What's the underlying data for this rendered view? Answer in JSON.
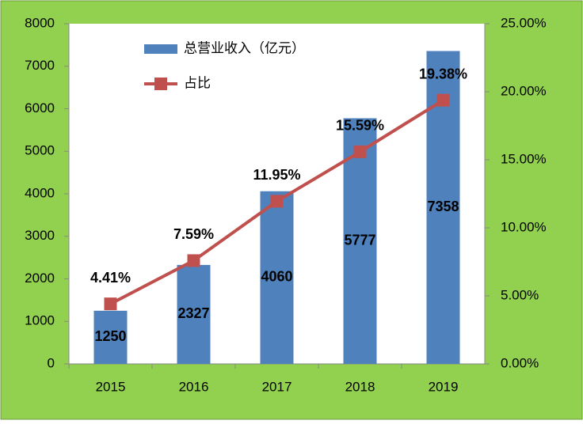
{
  "chart_data": {
    "type": "bar",
    "categories": [
      "2015",
      "2016",
      "2017",
      "2018",
      "2019"
    ],
    "series": [
      {
        "name": "总营业收入（亿元）",
        "type": "bar",
        "color": "#4f81bd",
        "values": [
          1250,
          2327,
          4060,
          5777,
          7358
        ]
      },
      {
        "name": "占比",
        "type": "line",
        "axis": "y2",
        "color": "#c0504d",
        "values": [
          4.41,
          7.59,
          11.95,
          15.59,
          19.38
        ],
        "value_labels": [
          "4.41%",
          "7.59%",
          "11.95%",
          "15.59%",
          "19.38%"
        ]
      }
    ],
    "ylim": [
      0,
      8000
    ],
    "yticks": [
      0,
      1000,
      2000,
      3000,
      4000,
      5000,
      6000,
      7000,
      8000
    ],
    "y2lim": [
      0,
      25
    ],
    "y2ticks": [
      {
        "value": 0,
        "label": "0.00%"
      },
      {
        "value": 5,
        "label": "5.00%"
      },
      {
        "value": 10,
        "label": "10.00%"
      },
      {
        "value": 15,
        "label": "15.00%"
      },
      {
        "value": 20,
        "label": "20.00%"
      },
      {
        "value": 25,
        "label": "25.00%"
      }
    ],
    "legend": "top-left",
    "grid": false
  }
}
